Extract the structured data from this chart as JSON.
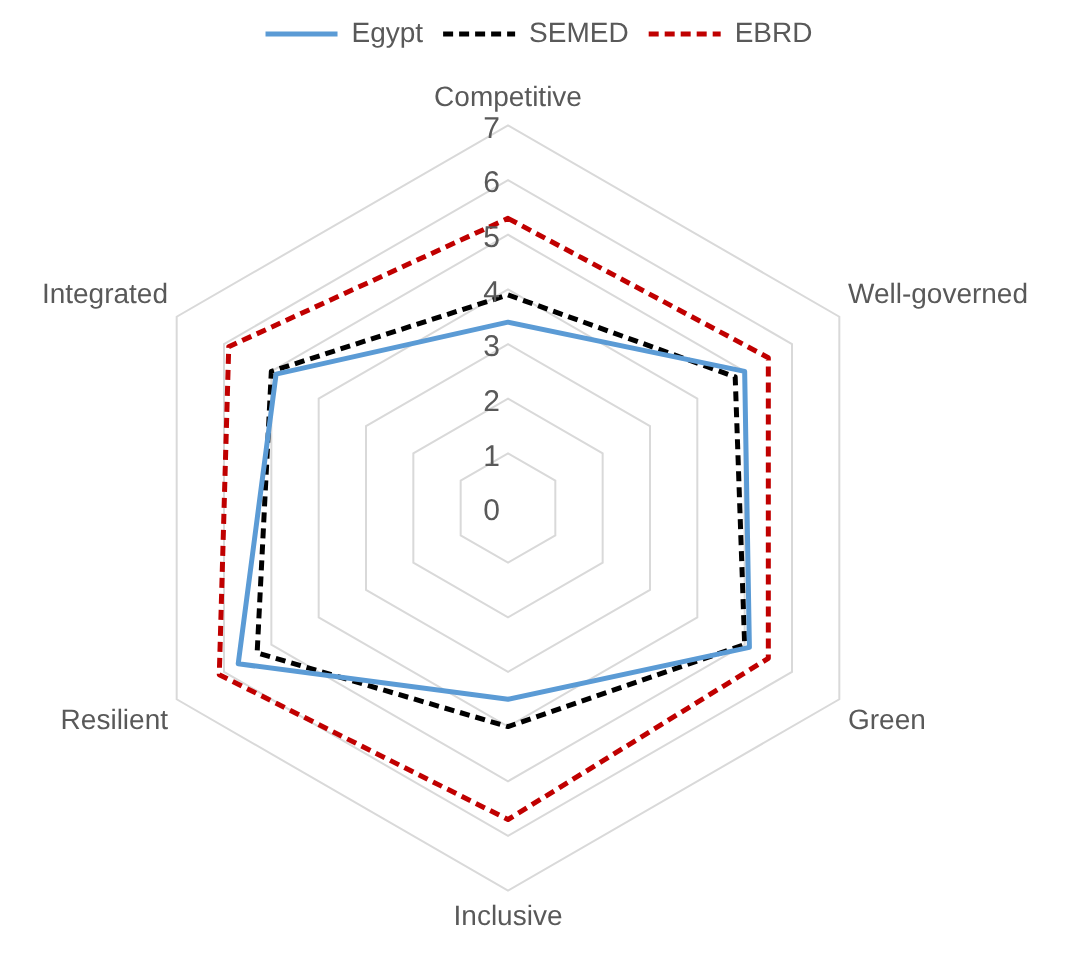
{
  "chart_data": {
    "type": "radar",
    "categories": [
      "Competitive",
      "Well-governed",
      "Green",
      "Inclusive",
      "Resilient",
      "Integrated"
    ],
    "series": [
      {
        "name": "Egypt",
        "color": "#5b9bd5",
        "line_style": "solid",
        "values": [
          3.4,
          5.0,
          5.1,
          3.5,
          5.7,
          4.9
        ]
      },
      {
        "name": "SEMED",
        "color": "#000000",
        "line_style": "dashed",
        "values": [
          3.9,
          4.8,
          5.0,
          4.0,
          5.3,
          5.0
        ]
      },
      {
        "name": "EBRD",
        "color": "#c00000",
        "line_style": "dashed",
        "values": [
          5.3,
          5.5,
          5.5,
          5.7,
          6.1,
          5.9
        ]
      }
    ],
    "ylim": [
      0,
      7
    ],
    "yticks": [
      0,
      1,
      2,
      3,
      4,
      5,
      6,
      7
    ],
    "grid": true,
    "legend": "top",
    "marker": "none"
  }
}
